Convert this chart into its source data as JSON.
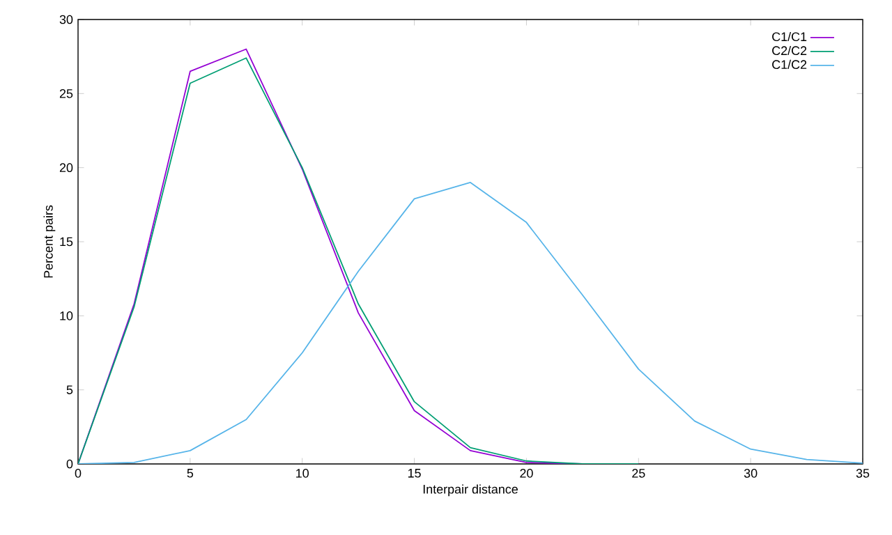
{
  "chart_data": {
    "type": "line",
    "xlabel": "Interpair distance",
    "ylabel": "Percent pairs",
    "xlim": [
      0,
      35
    ],
    "ylim": [
      0,
      30
    ],
    "xticks": [
      0,
      5,
      10,
      15,
      20,
      25,
      30,
      35
    ],
    "yticks": [
      0,
      5,
      10,
      15,
      20,
      25,
      30
    ],
    "legend": "top right",
    "grid": false,
    "marker": "none",
    "line_style": "solid",
    "series": [
      {
        "name": "C1/C1",
        "color": "#9400d3",
        "x": [
          0,
          2.5,
          5,
          7.5,
          10,
          12.5,
          15,
          17.5,
          20,
          22.5,
          25
        ],
        "values": [
          0,
          10.8,
          26.5,
          28.0,
          19.9,
          10.2,
          3.6,
          0.9,
          0.1,
          0,
          0
        ]
      },
      {
        "name": "C2/C2",
        "color": "#009e73",
        "x": [
          0,
          2.5,
          5,
          7.5,
          10,
          12.5,
          15,
          17.5,
          20,
          22.5,
          25
        ],
        "values": [
          0,
          10.6,
          25.7,
          27.4,
          20.0,
          10.8,
          4.2,
          1.1,
          0.2,
          0,
          0
        ]
      },
      {
        "name": "C1/C2",
        "color": "#56b4e9",
        "x": [
          0,
          2.5,
          5,
          7.5,
          10,
          12.5,
          15,
          17.5,
          20,
          22.5,
          25,
          27.5,
          30,
          32.5,
          35
        ],
        "values": [
          0,
          0.1,
          0.9,
          3.0,
          7.5,
          13.0,
          17.9,
          19.0,
          16.3,
          11.4,
          6.4,
          2.9,
          1.0,
          0.3,
          0.05
        ]
      }
    ]
  }
}
